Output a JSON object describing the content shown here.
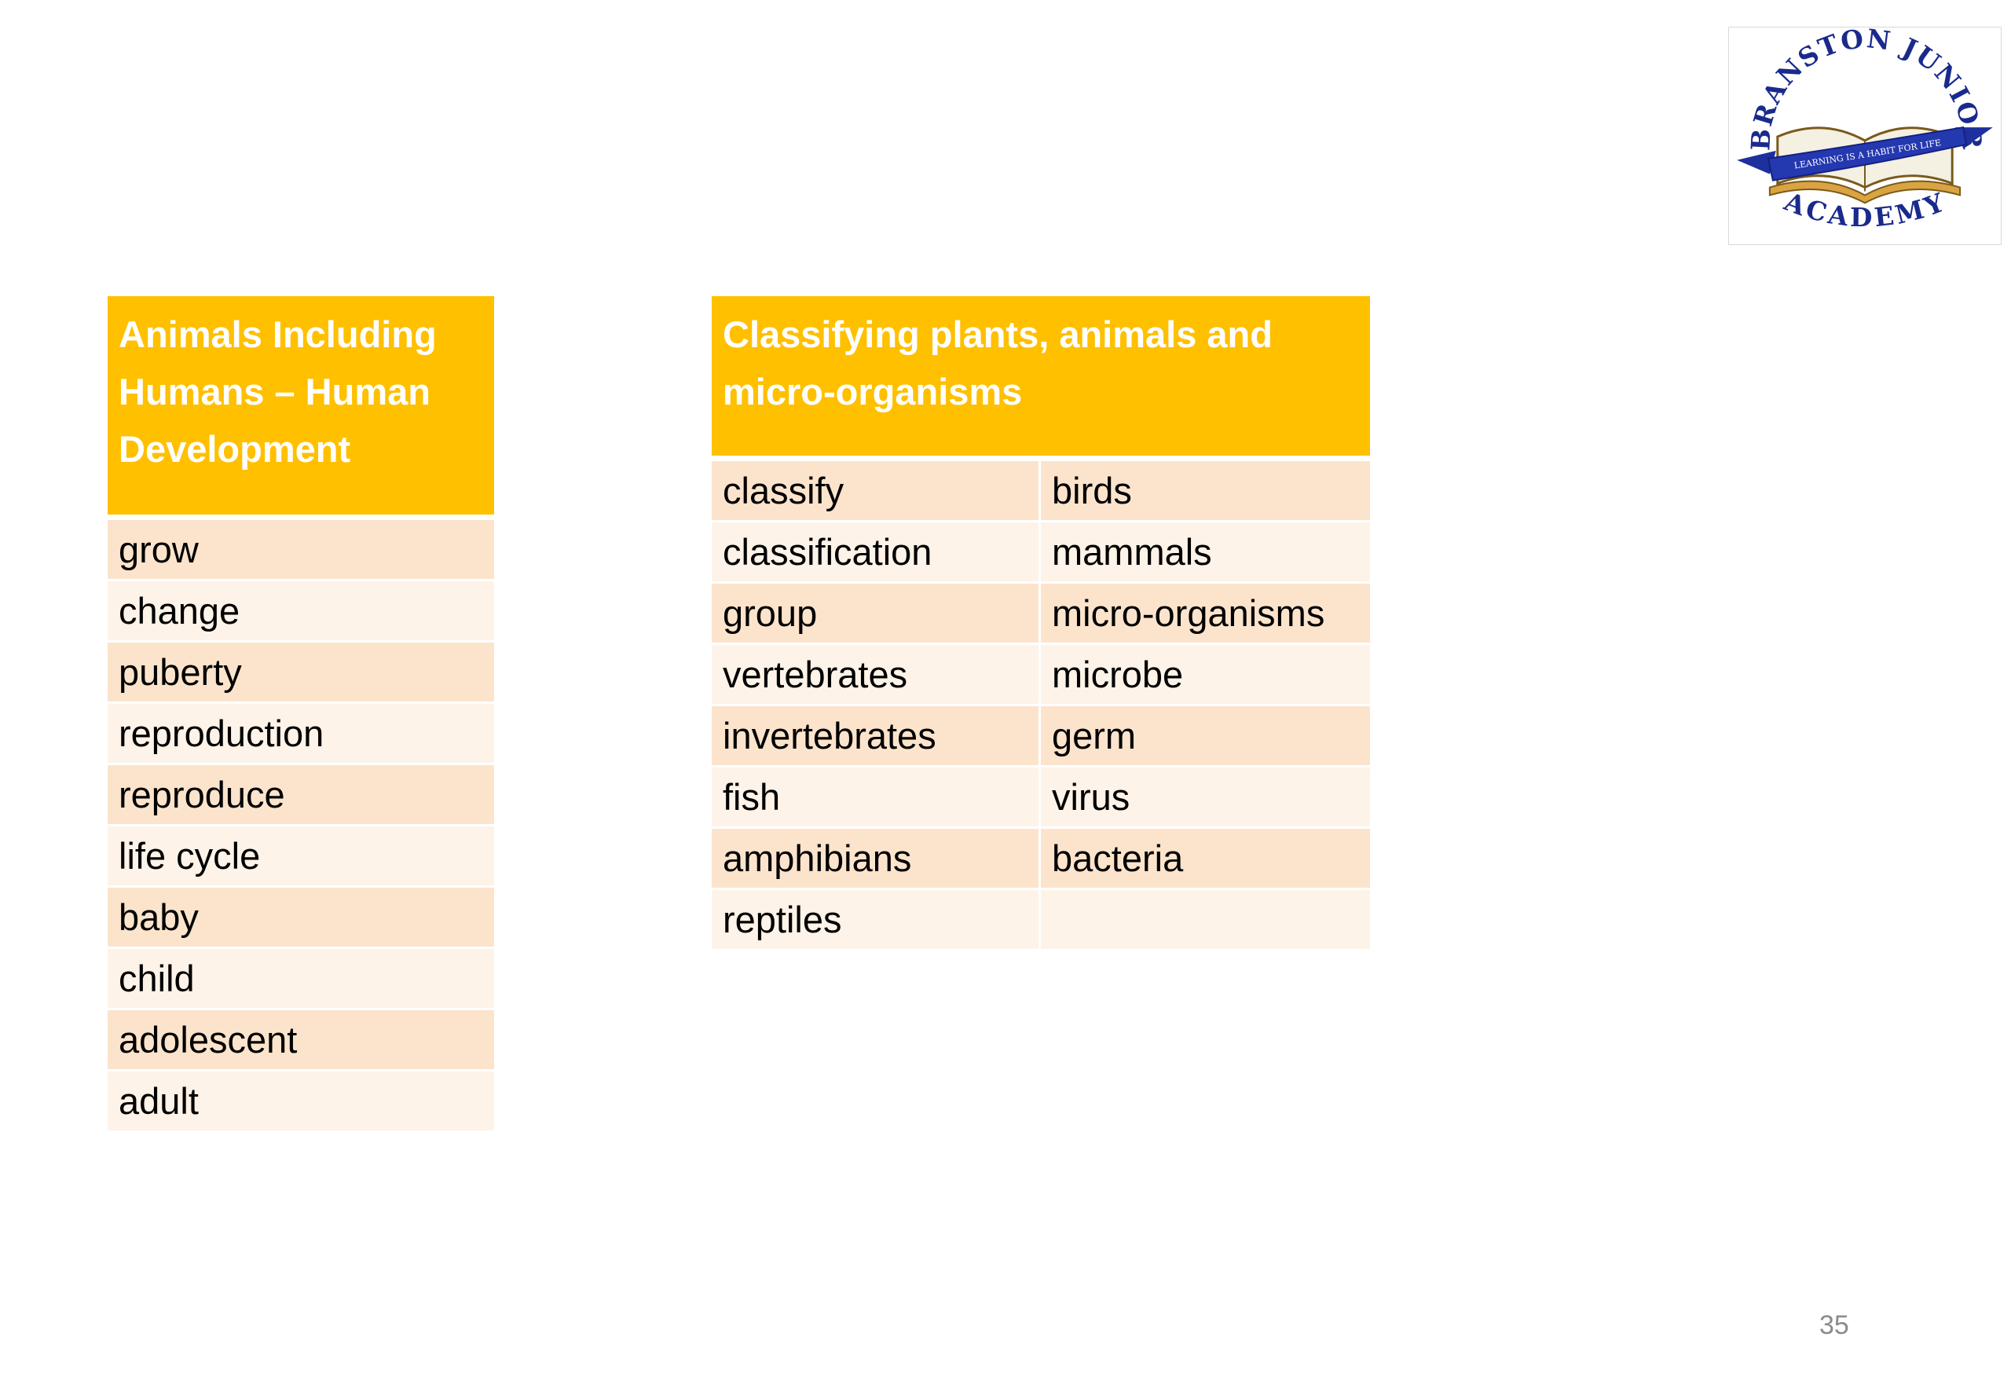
{
  "logo": {
    "top_text": "BRANSTON JUNIOR",
    "bottom_text": "ACADEMY",
    "ribbon_text": "LEARNING IS A HABIT FOR LIFE"
  },
  "animals_table": {
    "header": "Animals Including Humans – Human Development",
    "rows": [
      "grow",
      "change",
      "puberty",
      "reproduction",
      "reproduce",
      "life cycle",
      "baby",
      "child",
      "adolescent",
      "adult"
    ]
  },
  "classify_table": {
    "header": "Classifying plants, animals and micro-organisms",
    "rows": [
      [
        "classify",
        "birds"
      ],
      [
        "classification",
        "mammals"
      ],
      [
        "group",
        "micro-organisms"
      ],
      [
        "vertebrates",
        "microbe"
      ],
      [
        "invertebrates",
        "germ"
      ],
      [
        "fish",
        "virus"
      ],
      [
        "amphibians",
        "bacteria"
      ],
      [
        "reptiles",
        ""
      ]
    ]
  },
  "page_number": "35",
  "colors": {
    "header": "#FFC000",
    "row_dark": "#FCE4CC",
    "row_light": "#FEF3E8"
  }
}
